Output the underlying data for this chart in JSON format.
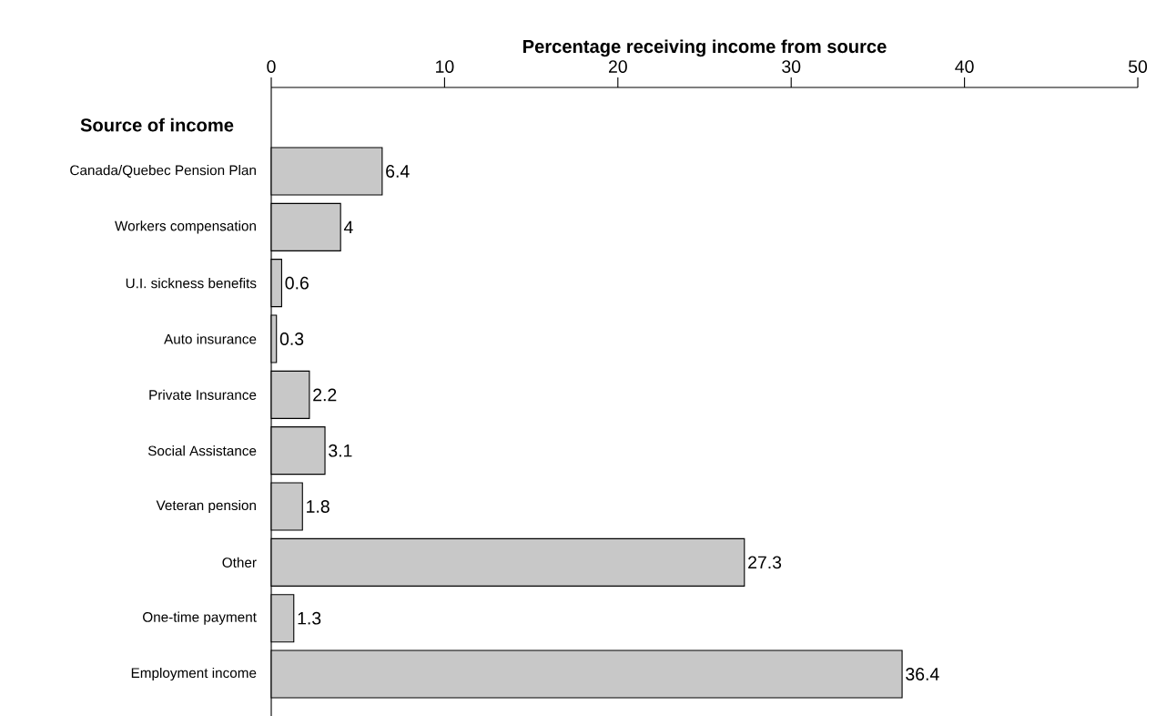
{
  "chart_data": {
    "type": "bar",
    "orientation": "horizontal",
    "xlabel": "Percentage receiving income from source",
    "ylabel": "Source of income",
    "categories": [
      "Canada/Quebec Pension Plan",
      "Workers compensation",
      "U.I. sickness benefits",
      "Auto insurance",
      "Private Insurance",
      "Social Assistance",
      "Veteran pension",
      "Other",
      "One-time payment",
      "Employment income"
    ],
    "values": [
      6.4,
      4,
      0.6,
      0.3,
      2.2,
      3.1,
      1.8,
      27.3,
      1.3,
      36.4
    ],
    "color": "#c8c8c8",
    "xlim": [
      0,
      50
    ],
    "xticks": [
      0,
      10,
      20,
      30,
      40,
      50
    ],
    "data_labels": true
  }
}
